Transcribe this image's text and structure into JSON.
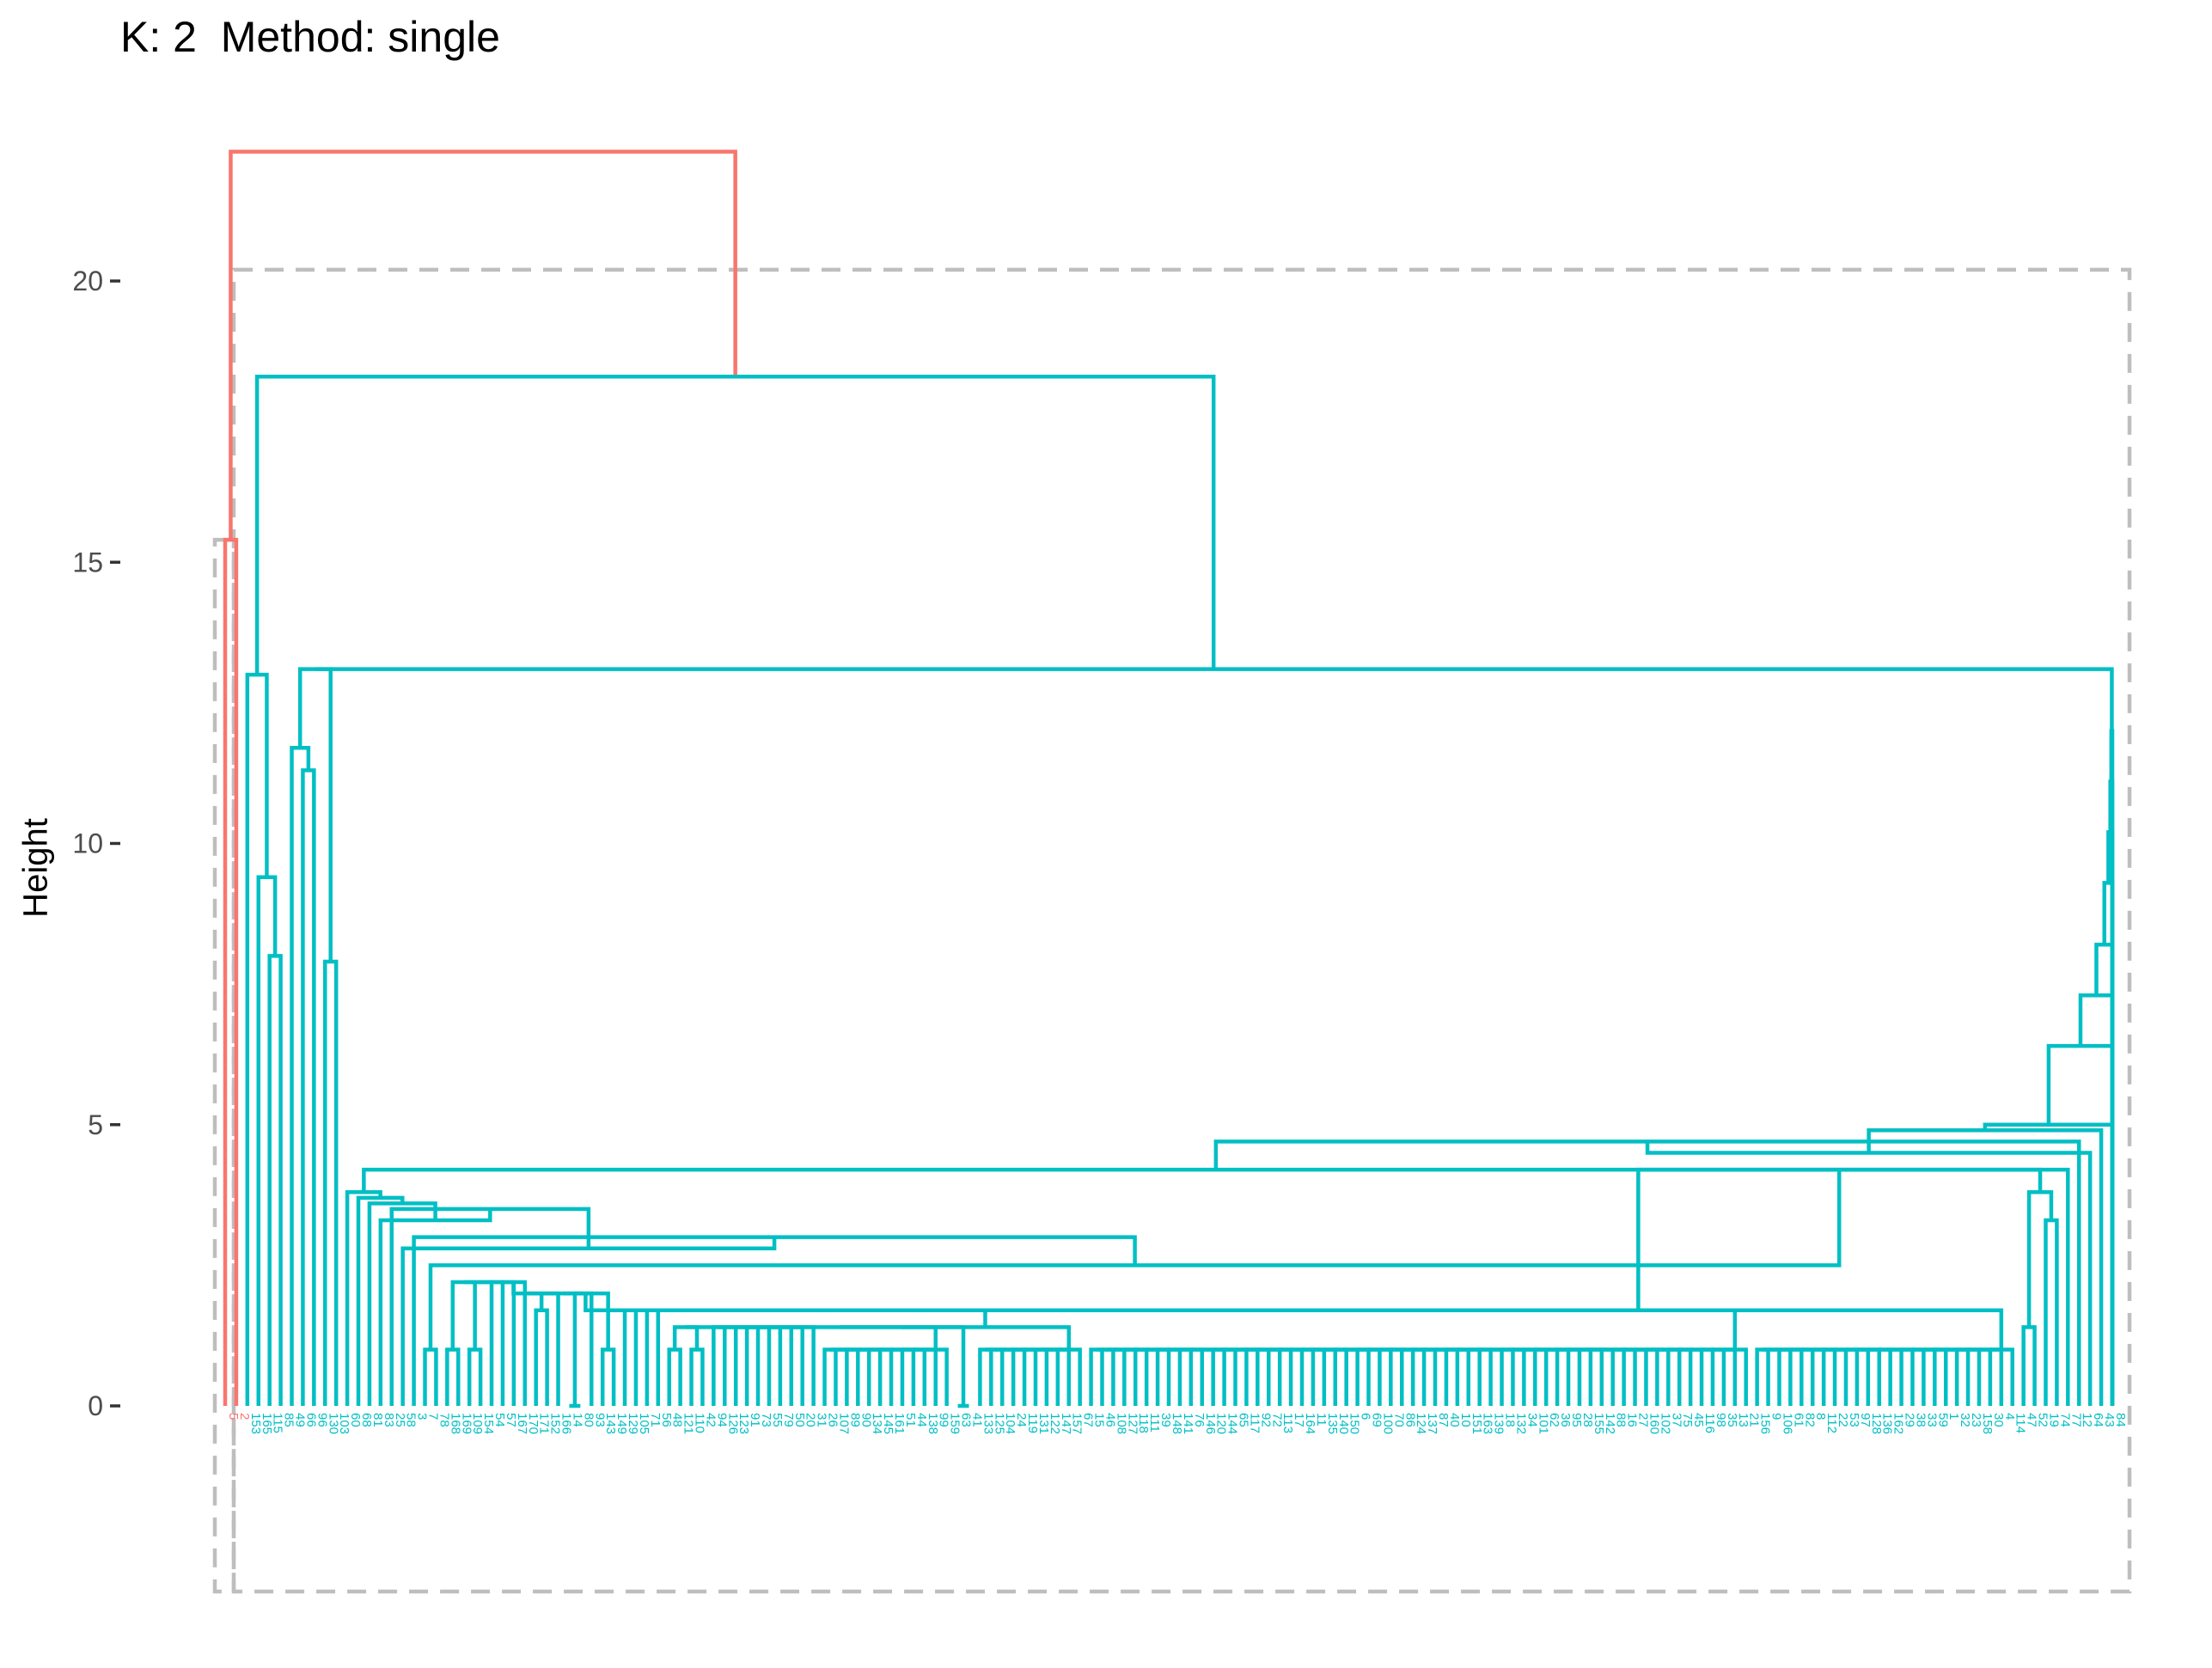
{
  "chart_data": {
    "type": "dendrogram",
    "title": "K: 2  Method: single",
    "xlabel": "",
    "ylabel": "Height",
    "ylim": [
      -3.3,
      22.3
    ],
    "y_ticks": [
      0,
      5,
      10,
      15,
      20
    ],
    "grid": false,
    "k": 2,
    "method": "single",
    "colors": {
      "cluster_1": "#F8766D",
      "cluster_2": "#00BFC4",
      "rect": "#BEBEBE",
      "axis_text": "#4D4D4D"
    },
    "clusters": [
      {
        "cluster": 1,
        "leaf_labels": [
          "5",
          "2"
        ],
        "merge_height": 15.4
      },
      {
        "cluster": 2,
        "merge_height": 22.3
      }
    ],
    "leaf_labels": [
      "5",
      "2",
      "153",
      "165",
      "115",
      "85",
      "49",
      "66",
      "96",
      "130",
      "103",
      "60",
      "68",
      "81",
      "83",
      "25",
      "58",
      "3",
      "7",
      "78",
      "168",
      "169",
      "109",
      "154",
      "54",
      "57",
      "167",
      "170",
      "171",
      "152",
      "166",
      "14",
      "80",
      "93",
      "143",
      "149",
      "129",
      "105",
      "71",
      "56",
      "48",
      "121",
      "110",
      "42",
      "94",
      "126",
      "123",
      "91",
      "73",
      "55",
      "79",
      "50",
      "20",
      "31",
      "26",
      "107",
      "89",
      "90",
      "134",
      "145",
      "161",
      "51",
      "44",
      "138",
      "99",
      "159",
      "63",
      "41",
      "133",
      "125",
      "104",
      "24",
      "119",
      "131",
      "122",
      "147",
      "157",
      "67",
      "15",
      "46",
      "108",
      "127",
      "118",
      "111",
      "39",
      "148",
      "141",
      "76",
      "146",
      "120",
      "144",
      "65",
      "117",
      "92",
      "72",
      "113",
      "17",
      "164",
      "11",
      "135",
      "140",
      "150",
      "6",
      "69",
      "100",
      "70",
      "86",
      "124",
      "137",
      "87",
      "40",
      "10",
      "151",
      "163",
      "139",
      "18",
      "132",
      "34",
      "101",
      "62",
      "36",
      "95",
      "28",
      "155",
      "142",
      "88",
      "16",
      "27",
      "160",
      "102",
      "37",
      "75",
      "45",
      "116",
      "98",
      "35",
      "13",
      "21",
      "156",
      "9",
      "106",
      "61",
      "82",
      "8",
      "112",
      "22",
      "53",
      "97",
      "128",
      "136",
      "162",
      "29",
      "38",
      "33",
      "59",
      "1",
      "32",
      "23",
      "158",
      "30",
      "4",
      "114",
      "47",
      "52",
      "19",
      "74",
      "77",
      "12",
      "64",
      "43",
      "84"
    ],
    "merge_heights": [
      22.3,
      18.3,
      15.4,
      13.1,
      13.1,
      13.0,
      12.0,
      11.7,
      11.3,
      11.1,
      10.2,
      9.4,
      9.3,
      8.2,
      8.0,
      7.9,
      7.3,
      6.9,
      6.6,
      6.4,
      5.0,
      4.9,
      4.7,
      4.5,
      4.2,
      3.8,
      3.7,
      3.6,
      3.5,
      3.3,
      3.0,
      2.8,
      2.5,
      2.2,
      2.0,
      1.7,
      1.4,
      1.0,
      0.0
    ]
  }
}
